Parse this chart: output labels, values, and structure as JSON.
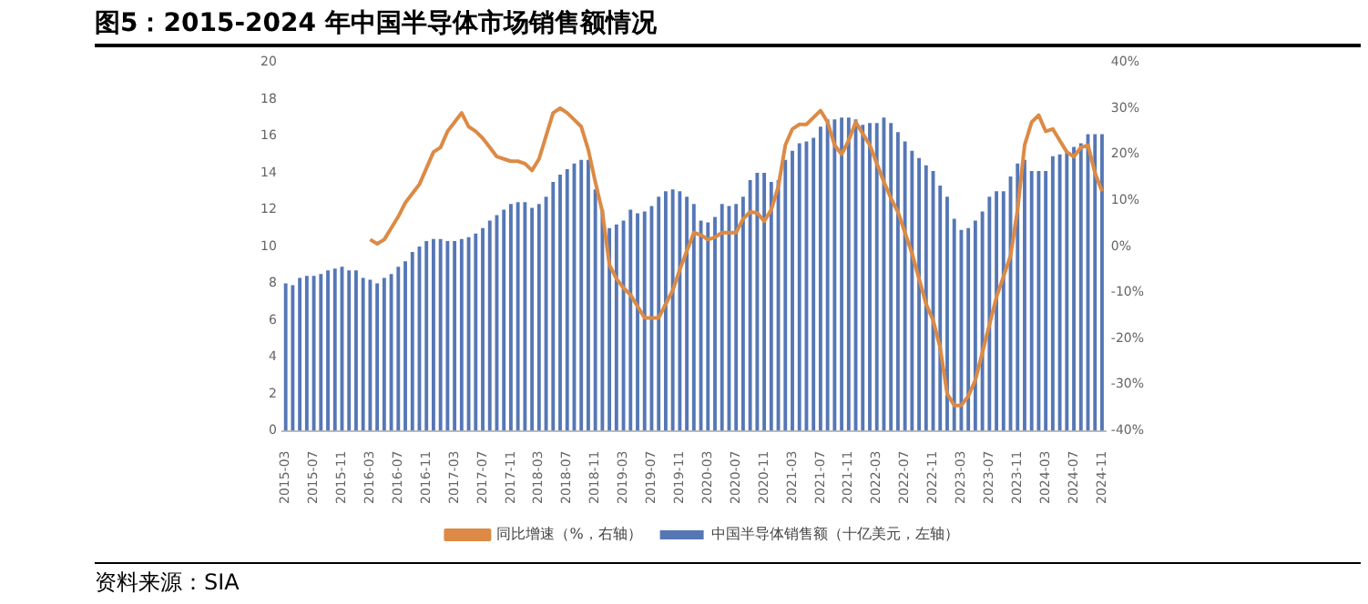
{
  "chart_data": {
    "type": "bar",
    "title": "图5：2015-2024 年中国半导体市场销售额情况",
    "categories": [
      "2015-03",
      null,
      null,
      null,
      "2015-07",
      null,
      null,
      null,
      "2015-11",
      null,
      null,
      null,
      "2016-03",
      null,
      null,
      null,
      "2016-07",
      null,
      null,
      null,
      "2016-11",
      null,
      null,
      null,
      "2017-03",
      null,
      null,
      null,
      "2017-07",
      null,
      null,
      null,
      "2017-11",
      null,
      null,
      null,
      "2018-03",
      null,
      null,
      null,
      "2018-07",
      null,
      null,
      null,
      "2018-11",
      null,
      null,
      null,
      "2019-03",
      null,
      null,
      null,
      "2019-07",
      null,
      null,
      null,
      "2019-11",
      null,
      null,
      null,
      "2020-03",
      null,
      null,
      null,
      "2020-07",
      null,
      null,
      null,
      "2020-11",
      null,
      null,
      null,
      "2021-03",
      null,
      null,
      null,
      "2021-07",
      null,
      null,
      null,
      "2021-11",
      null,
      null,
      null,
      "2022-03",
      null,
      null,
      null,
      "2022-07",
      null,
      null,
      null,
      "2022-11",
      null,
      null,
      null,
      "2023-03",
      null,
      null,
      null,
      "2023-07",
      null,
      null,
      null,
      "2023-11",
      null,
      null,
      null,
      "2024-03",
      null,
      null,
      null,
      "2024-07",
      null,
      null,
      null,
      "2024-11"
    ],
    "series": [
      {
        "name": "中国半导体销售额（十亿美元，左轴）",
        "color": "#5577b5",
        "values": [
          8.0,
          7.9,
          8.3,
          8.4,
          8.4,
          8.5,
          8.7,
          8.8,
          8.9,
          8.7,
          8.7,
          8.3,
          8.2,
          8.0,
          8.3,
          8.5,
          8.9,
          9.2,
          9.7,
          10.0,
          10.3,
          10.4,
          10.4,
          10.3,
          10.3,
          10.4,
          10.5,
          10.7,
          11.0,
          11.4,
          11.7,
          12.0,
          12.3,
          12.4,
          12.4,
          12.1,
          12.3,
          12.7,
          13.5,
          13.9,
          14.2,
          14.5,
          14.7,
          14.7,
          13.1,
          12.0,
          11.0,
          11.2,
          11.4,
          12.0,
          11.8,
          11.9,
          12.2,
          12.7,
          13.0,
          13.1,
          13.0,
          12.7,
          12.3,
          11.4,
          11.3,
          11.6,
          12.3,
          12.2,
          12.3,
          12.7,
          13.6,
          14.0,
          14.0,
          13.5,
          13.6,
          14.7,
          15.2,
          15.6,
          15.7,
          15.9,
          16.5,
          16.9,
          16.9,
          17.0,
          17.0,
          16.9,
          16.6,
          16.7,
          16.7,
          17.0,
          16.7,
          16.2,
          15.7,
          15.2,
          14.8,
          14.4,
          14.1,
          13.3,
          12.7,
          11.5,
          10.9,
          11.0,
          11.4,
          11.9,
          12.7,
          13.0,
          13.0,
          13.8,
          14.5,
          14.7,
          14.1,
          14.1,
          14.1,
          14.9,
          15.0,
          15.1,
          15.4,
          15.6,
          16.1,
          16.1,
          16.1
        ]
      },
      {
        "name": "同比增速（%，右轴）",
        "type": "line",
        "axis": "y2",
        "color": "#dc8a45",
        "values": [
          null,
          null,
          null,
          null,
          null,
          null,
          null,
          null,
          null,
          null,
          null,
          null,
          1.5,
          0.6,
          1.5,
          4,
          6.5,
          9.5,
          11.5,
          13.5,
          17,
          20.5,
          21.5,
          25,
          27,
          29,
          26,
          25,
          23.5,
          21.5,
          19.5,
          19,
          18.5,
          18.5,
          18,
          16.5,
          19,
          24,
          29,
          30,
          29,
          27.5,
          26,
          21,
          14,
          7.5,
          -4,
          -7,
          -9,
          -10.5,
          -13,
          -15.5,
          -15.5,
          -15.5,
          -12.5,
          -9.5,
          -5,
          -1,
          3,
          2.5,
          1.5,
          2,
          3,
          3,
          3,
          6,
          7.5,
          7.3,
          5.5,
          8,
          13,
          22,
          25.5,
          26.5,
          26.5,
          28,
          29.5,
          27,
          22,
          20,
          23,
          27,
          24.5,
          22,
          18,
          14,
          10.5,
          7.5,
          3,
          -1.5,
          -7,
          -12.5,
          -16,
          -22,
          -32,
          -34.5,
          -34.5,
          -32.5,
          -29,
          -23,
          -17,
          -11,
          -6.5,
          -2,
          8,
          22,
          27,
          28.5,
          25,
          25.5,
          23,
          20.5,
          19.5,
          21.5,
          22,
          16,
          12
        ]
      }
    ],
    "ylim": [
      0,
      20
    ],
    "yticks": [
      0,
      2,
      4,
      6,
      8,
      10,
      12,
      14,
      16,
      18,
      20
    ],
    "y2lim": [
      -40,
      40
    ],
    "y2ticks": [
      {
        "value": -40,
        "label": "-40%"
      },
      {
        "value": -30,
        "label": "-30%"
      },
      {
        "value": -20,
        "label": "-20%"
      },
      {
        "value": -10,
        "label": "-10%"
      },
      {
        "value": 0,
        "label": "0%"
      },
      {
        "value": 10,
        "label": "10%"
      },
      {
        "value": 20,
        "label": "20%"
      },
      {
        "value": 30,
        "label": "30%"
      },
      {
        "value": 40,
        "label": "40%"
      }
    ],
    "grid": false,
    "legend": "bottom",
    "marker": "none",
    "line_style": "solid",
    "annotations": [
      "资料来源：SIA"
    ]
  }
}
